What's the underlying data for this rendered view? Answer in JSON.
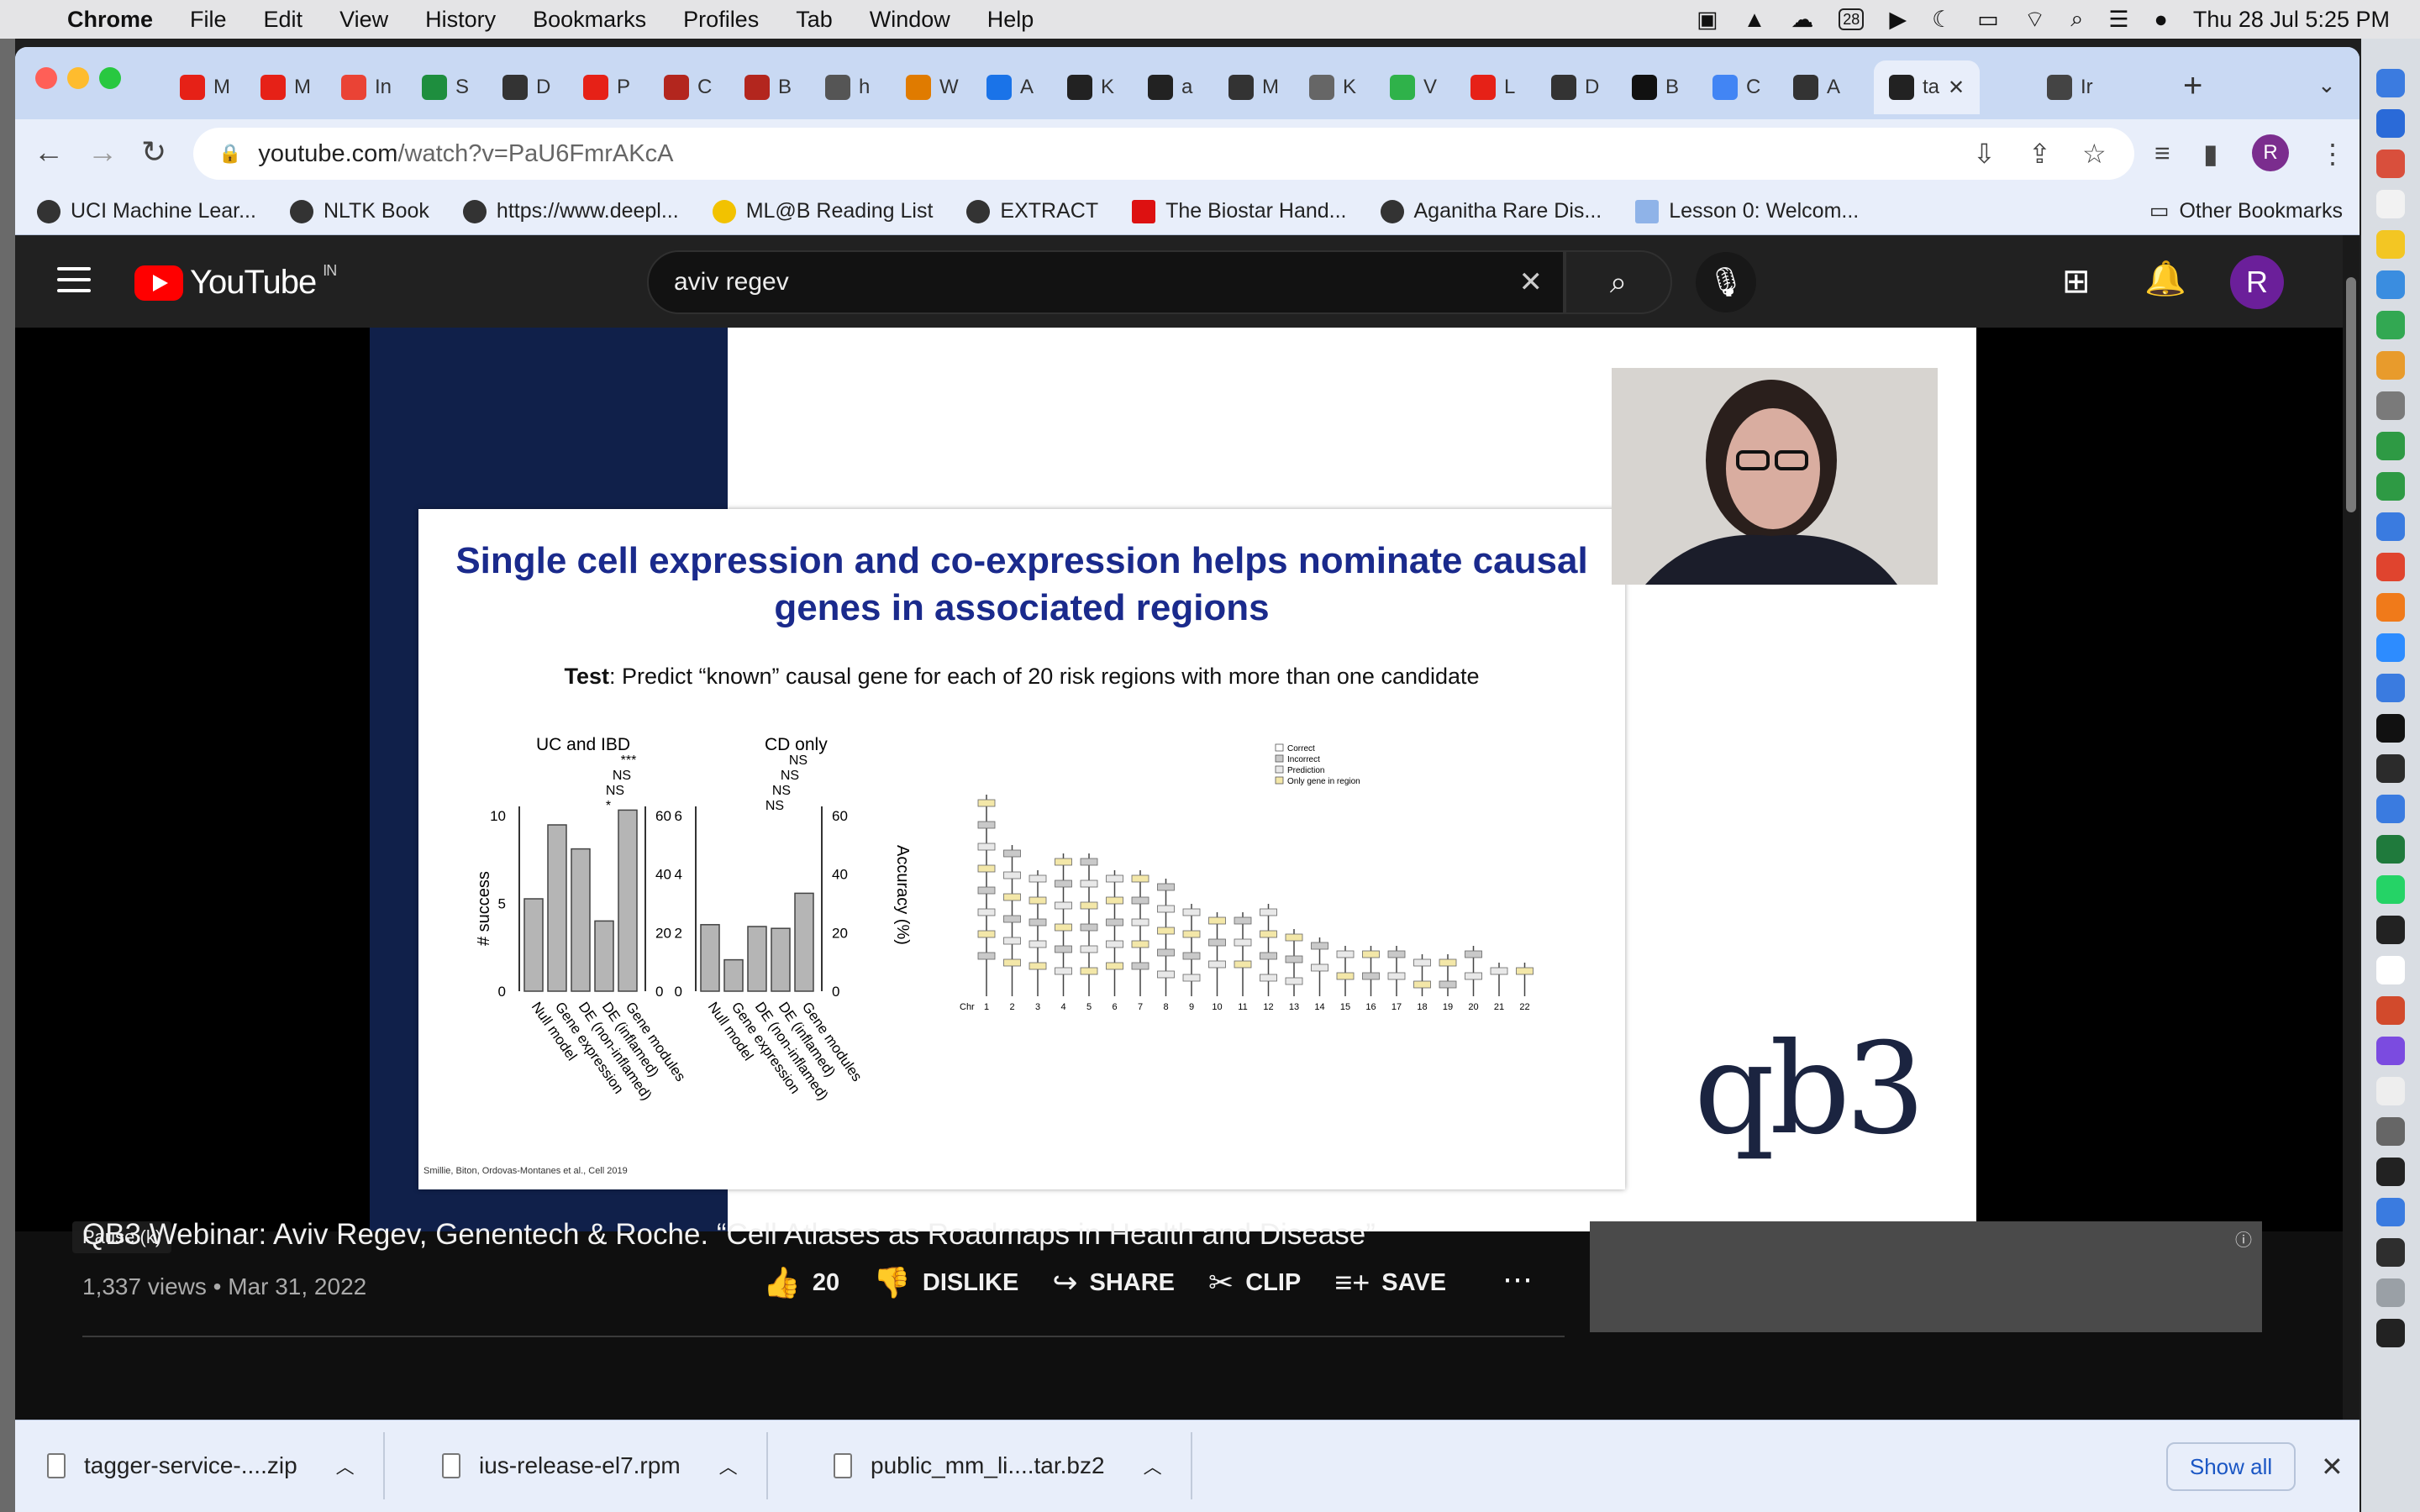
{
  "menubar": {
    "app": "Chrome",
    "items": [
      "File",
      "Edit",
      "View",
      "History",
      "Bookmarks",
      "Profiles",
      "Tab",
      "Window",
      "Help"
    ],
    "calendar_badge": "28",
    "datetime": "Thu 28 Jul  5:25 PM"
  },
  "tabs": [
    {
      "letter": "M",
      "color": "#e62117"
    },
    {
      "letter": "M",
      "color": "#e62117"
    },
    {
      "letter": "In",
      "color": "#ea4335"
    },
    {
      "letter": "S",
      "color": "#1e8e3e"
    },
    {
      "letter": "D",
      "color": "#333333"
    },
    {
      "letter": "P",
      "color": "#e62117"
    },
    {
      "letter": "C",
      "color": "#b3261e"
    },
    {
      "letter": "B",
      "color": "#b3261e"
    },
    {
      "letter": "h",
      "color": "#555555"
    },
    {
      "letter": "W",
      "color": "#e07b00"
    },
    {
      "letter": "A",
      "color": "#1a73e8"
    },
    {
      "letter": "K",
      "color": "#222222"
    },
    {
      "letter": "a",
      "color": "#222222"
    },
    {
      "letter": "M",
      "color": "#333333"
    },
    {
      "letter": "K",
      "color": "#666666"
    },
    {
      "letter": "V",
      "color": "#2fb24a"
    },
    {
      "letter": "L",
      "color": "#e62117"
    },
    {
      "letter": "D",
      "color": "#333333"
    },
    {
      "letter": "B",
      "color": "#111111"
    },
    {
      "letter": "C",
      "color": "#4285f4"
    },
    {
      "letter": "A",
      "color": "#333333"
    },
    {
      "letter": "ta",
      "color": "#222222"
    },
    {
      "letter": "Ir",
      "color": "#444444"
    }
  ],
  "active_tab_close": "✕",
  "address": {
    "domain": "youtube.com",
    "path": "/watch?v=PaU6FmrAKcA"
  },
  "bookmarks": [
    {
      "label": "UCI Machine Lear..."
    },
    {
      "label": "NLTK Book"
    },
    {
      "label": "https://www.deepl..."
    },
    {
      "label": "ML@B Reading List"
    },
    {
      "label": "EXTRACT"
    },
    {
      "label": "The Biostar Hand..."
    },
    {
      "label": "Aganitha Rare Dis..."
    },
    {
      "label": "Lesson 0: Welcom..."
    }
  ],
  "other_bookmarks": "Other Bookmarks",
  "youtube": {
    "logo_text": "YouTube",
    "country": "IN",
    "search_query": "aviv regev",
    "avatar_letter": "R",
    "slide": {
      "title": "Single cell expression and co-expression helps nominate causal genes in associated regions",
      "test_label": "Test",
      "test_text": ": Predict “known” causal gene for each of 20 risk regions with more than one candidate",
      "left_panel_title": "UC and IBD",
      "right_panel_title": "CD only",
      "left_axis_label": "# success",
      "right_axis_label": "Accuracy (%)",
      "significance": [
        "***",
        "NS",
        "NS",
        "*",
        "NS",
        "NS",
        "NS",
        "NS"
      ],
      "bar_categories": [
        "Null model",
        "Gene expression",
        "DE (non-inflamed)",
        "DE (inflamed)",
        "Gene modules"
      ],
      "left_ticks": [
        "0",
        "5",
        "10"
      ],
      "right_ticks_left": [
        "0",
        "20",
        "40",
        "60"
      ],
      "middle_ticks": [
        "0",
        "2",
        "4",
        "6"
      ],
      "right_ticks_right": [
        "0",
        "20",
        "40",
        "60"
      ],
      "legend": [
        "Correct",
        "Incorrect",
        "Prediction",
        "Only gene in region"
      ],
      "chr_label": "Chr",
      "chromosomes": [
        "1",
        "2",
        "3",
        "4",
        "5",
        "6",
        "7",
        "8",
        "9",
        "10",
        "11",
        "12",
        "13",
        "14",
        "15",
        "16",
        "17",
        "18",
        "19",
        "20",
        "21",
        "22"
      ],
      "citation": "Smillie, Biton, Ordovas-Montanes et al., Cell 2019",
      "logo": "qb3"
    },
    "tooltip": "Pause (k)",
    "video_title": "QB3 Webinar: Aviv Regev, Genentech & Roche. “Cell Atlases as Roadmaps in Health and Disease”",
    "views_date": "1,337 views • Mar 31, 2022",
    "likes": "20",
    "dislike": "DISLIKE",
    "share": "SHARE",
    "clip": "CLIP",
    "save": "SAVE"
  },
  "downloads": [
    {
      "name": "tagger-service-....zip"
    },
    {
      "name": "ius-release-el7.rpm"
    },
    {
      "name": "public_mm_li....tar.bz2"
    }
  ],
  "show_all": "Show all"
}
